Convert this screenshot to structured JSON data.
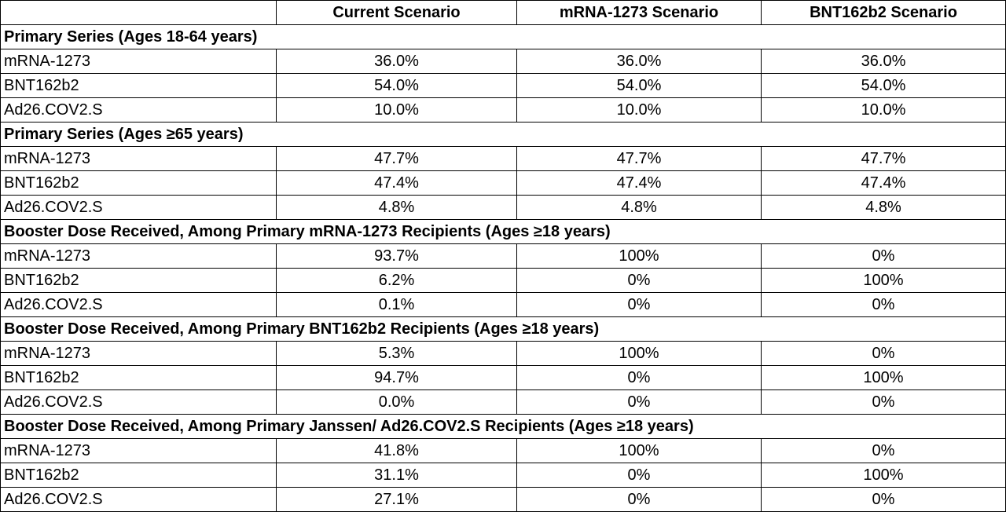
{
  "table": {
    "columns": [
      "Current Scenario",
      "mRNA-1273 Scenario",
      "BNT162b2 Scenario"
    ],
    "sections": [
      {
        "title": "Primary Series (Ages 18-64 years)",
        "rows": [
          [
            "mRNA-1273",
            "36.0%",
            "36.0%",
            "36.0%"
          ],
          [
            "BNT162b2",
            "54.0%",
            "54.0%",
            "54.0%"
          ],
          [
            "Ad26.COV2.S",
            "10.0%",
            "10.0%",
            "10.0%"
          ]
        ]
      },
      {
        "title": "Primary Series (Ages ≥65 years)",
        "rows": [
          [
            "mRNA-1273",
            "47.7%",
            "47.7%",
            "47.7%"
          ],
          [
            "BNT162b2",
            "47.4%",
            "47.4%",
            "47.4%"
          ],
          [
            "Ad26.COV2.S",
            "4.8%",
            "4.8%",
            "4.8%"
          ]
        ]
      },
      {
        "title": "Booster Dose Received, Among Primary mRNA-1273 Recipients (Ages ≥18 years)",
        "rows": [
          [
            "mRNA-1273",
            "93.7%",
            "100%",
            "0%"
          ],
          [
            "BNT162b2",
            "6.2%",
            "0%",
            "100%"
          ],
          [
            "Ad26.COV2.S",
            "0.1%",
            "0%",
            "0%"
          ]
        ]
      },
      {
        "title": "Booster Dose Received, Among Primary BNT162b2 Recipients (Ages ≥18 years)",
        "rows": [
          [
            "mRNA-1273",
            "5.3%",
            "100%",
            "0%"
          ],
          [
            "BNT162b2",
            "94.7%",
            "0%",
            "100%"
          ],
          [
            "Ad26.COV2.S",
            "0.0%",
            "0%",
            "0%"
          ]
        ]
      },
      {
        "title": "Booster Dose Received, Among Primary Janssen/ Ad26.COV2.S Recipients (Ages ≥18 years)",
        "rows": [
          [
            "mRNA-1273",
            "41.8%",
            "100%",
            "0%"
          ],
          [
            "BNT162b2",
            "31.1%",
            "0%",
            "100%"
          ],
          [
            "Ad26.COV2.S",
            "27.1%",
            "0%",
            "0%"
          ]
        ]
      }
    ]
  }
}
